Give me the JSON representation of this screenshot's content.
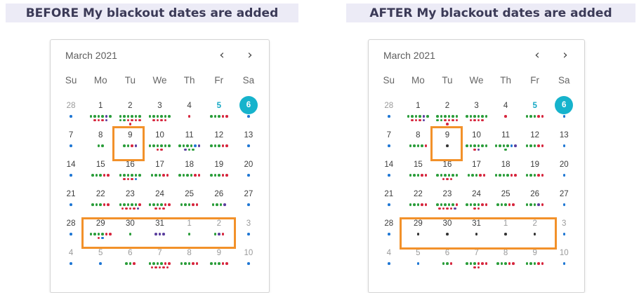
{
  "titles": {
    "before": "BEFORE My blackout dates are added",
    "after": "AFTER My blackout dates are added"
  },
  "colors": {
    "green": "#2a9d3a",
    "red": "#d6263d",
    "blue": "#1f77d4",
    "purple": "#5b3f9e",
    "dark": "#333333",
    "highlight": "#f2912a",
    "selected": "#16b3cc"
  },
  "calendar_before": {
    "month": "March 2021",
    "prev_icon": "chevron-left-icon",
    "next_icon": "chevron-right-icon",
    "weekdays": [
      "Su",
      "Mo",
      "Tu",
      "We",
      "Th",
      "Fr",
      "Sa"
    ],
    "weeks": [
      [
        {
          "d": "28",
          "o": 1,
          "dots": "b"
        },
        {
          "d": "1",
          "dots": "ggggpgrrrp"
        },
        {
          "d": "2",
          "dots": "ggggggggrrrrr"
        },
        {
          "d": "3",
          "dots": "ggggggrrrr"
        },
        {
          "d": "4",
          "dots": "r"
        },
        {
          "d": "5",
          "t": 1,
          "dots": "gggrr"
        },
        {
          "d": "6",
          "s": 1,
          "dots": "b"
        }
      ],
      [
        {
          "d": "7",
          "dots": "b"
        },
        {
          "d": "8",
          "dots": "gg"
        },
        {
          "d": "9",
          "dots": "ggrp"
        },
        {
          "d": "10",
          "dots": "ggggggrr"
        },
        {
          "d": "11",
          "dots": "ggggbppgg"
        },
        {
          "d": "12",
          "dots": "gggrr"
        },
        {
          "d": "13",
          "dots": "b"
        }
      ],
      [
        {
          "d": "14",
          "dots": "b"
        },
        {
          "d": "15",
          "dots": "gggrr"
        },
        {
          "d": "16",
          "dots": "ggggggrrrb"
        },
        {
          "d": "17",
          "dots": "gggrr"
        },
        {
          "d": "18",
          "dots": "ggggrr"
        },
        {
          "d": "19",
          "dots": "gggrr"
        },
        {
          "d": "20",
          "dots": "b"
        }
      ],
      [
        {
          "d": "21",
          "dots": "b"
        },
        {
          "d": "22",
          "dots": "gggrr"
        },
        {
          "d": "23",
          "dots": "gggggrrrrrp"
        },
        {
          "d": "24",
          "dots": "ggggrrrrr"
        },
        {
          "d": "25",
          "dots": "gggrr"
        },
        {
          "d": "26",
          "dots": "gggp"
        },
        {
          "d": "27",
          "dots": "b"
        }
      ],
      [
        {
          "d": "28",
          "dots": "b"
        },
        {
          "d": "29",
          "dots": "ggggrrrb"
        },
        {
          "d": "30",
          "dots": "g"
        },
        {
          "d": "31",
          "dots": "ppp"
        },
        {
          "d": "1",
          "o": 1,
          "dots": "g"
        },
        {
          "d": "2",
          "o": 1,
          "dots": "gpr"
        },
        {
          "d": "3",
          "o": 1,
          "dots": "b"
        }
      ],
      [
        {
          "d": "4",
          "o": 1,
          "dots": "b"
        },
        {
          "d": "5",
          "o": 1,
          "dots": "b"
        },
        {
          "d": "6",
          "o": 1,
          "dots": "ggr"
        },
        {
          "d": "7",
          "o": 1,
          "dots": "ggggrrrrrrr"
        },
        {
          "d": "8",
          "o": 1,
          "dots": "gggrr"
        },
        {
          "d": "9",
          "o": 1,
          "dots": "gggrr"
        },
        {
          "d": "10",
          "o": 1,
          "dots": "b"
        }
      ]
    ]
  },
  "calendar_after": {
    "month": "March 2021",
    "prev_icon": "chevron-left-icon",
    "next_icon": "chevron-right-icon",
    "weekdays": [
      "Su",
      "Mo",
      "Tu",
      "We",
      "Th",
      "Fr",
      "Sa"
    ],
    "weeks": [
      [
        {
          "d": "28",
          "o": 1,
          "dots": "b"
        },
        {
          "d": "1",
          "dots": "ggggpgrrrp"
        },
        {
          "d": "2",
          "dots": "ggggggggrrrrr"
        },
        {
          "d": "3",
          "dots": "ggggggrrrr"
        },
        {
          "d": "4",
          "dots": "r"
        },
        {
          "d": "5",
          "t": 1,
          "dots": "gggrr"
        },
        {
          "d": "6",
          "s": 1,
          "dots": "b"
        }
      ],
      [
        {
          "d": "7",
          "dots": "b"
        },
        {
          "d": "8",
          "dots": "ggggr"
        },
        {
          "d": "9",
          "dots": "k"
        },
        {
          "d": "10",
          "dots": "ggggggrp"
        },
        {
          "d": "11",
          "dots": "ggggbpg"
        },
        {
          "d": "12",
          "dots": "gggrr"
        },
        {
          "d": "13",
          "dots": "b"
        }
      ],
      [
        {
          "d": "14",
          "dots": "b"
        },
        {
          "d": "15",
          "dots": "gggrr"
        },
        {
          "d": "16",
          "dots": "ggggggrrr"
        },
        {
          "d": "17",
          "dots": "gggrr"
        },
        {
          "d": "18",
          "dots": "ggggrr"
        },
        {
          "d": "19",
          "dots": "gggrr"
        },
        {
          "d": "20",
          "dots": "b"
        }
      ],
      [
        {
          "d": "21",
          "dots": "b"
        },
        {
          "d": "22",
          "dots": "gggrr"
        },
        {
          "d": "23",
          "dots": "gggggrrrrrp"
        },
        {
          "d": "24",
          "dots": "ggggrrrr"
        },
        {
          "d": "25",
          "dots": "gggrr"
        },
        {
          "d": "26",
          "dots": "gggpr"
        },
        {
          "d": "27",
          "dots": "b"
        }
      ],
      [
        {
          "d": "28",
          "dots": "b"
        },
        {
          "d": "29",
          "dots": "k"
        },
        {
          "d": "30",
          "dots": "k"
        },
        {
          "d": "31",
          "dots": "k"
        },
        {
          "d": "1",
          "o": 1,
          "dots": "k"
        },
        {
          "d": "2",
          "o": 1,
          "dots": "k"
        },
        {
          "d": "3",
          "o": 1,
          "dots": "b"
        }
      ],
      [
        {
          "d": "4",
          "o": 1,
          "dots": "b"
        },
        {
          "d": "5",
          "o": 1,
          "dots": "b"
        },
        {
          "d": "6",
          "o": 1,
          "dots": "ggr"
        },
        {
          "d": "7",
          "o": 1,
          "dots": "gggrrrrr"
        },
        {
          "d": "8",
          "o": 1,
          "dots": "gggrr"
        },
        {
          "d": "9",
          "o": 1,
          "dots": "gggrr"
        },
        {
          "d": "10",
          "o": 1,
          "dots": "b"
        }
      ]
    ]
  }
}
